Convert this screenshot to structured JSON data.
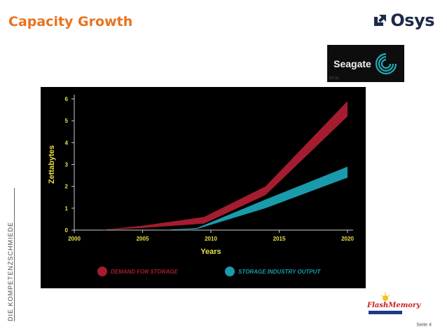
{
  "slide": {
    "title": "Capacity Growth",
    "brand": "Osys",
    "side_text": "DIE KOMPETENZSCHMIEDE",
    "page_label": "Seite 4",
    "seagate_logo_text": "Seagate",
    "seagate_small_text": "GT-XL",
    "fms_logo_text": "FlashMemory"
  },
  "colors": {
    "title": "#e8731e",
    "demand": "#a51c30",
    "output": "#1a9bab",
    "axis_text": "#e8e04a"
  },
  "chart_data": {
    "type": "area",
    "xlabel": "Years",
    "ylabel": "Zettabytes",
    "xlim": [
      2000,
      2020
    ],
    "ylim": [
      0,
      6
    ],
    "xticks": [
      "2000",
      "2005",
      "2010",
      "2015",
      "2020"
    ],
    "yticks": [
      "0",
      "1",
      "2",
      "3",
      "4",
      "5",
      "6"
    ],
    "grid": false,
    "legend": "bottom",
    "series": [
      {
        "name": "DEMAND FOR STORAGE",
        "color": "#a51c30",
        "x": [
          2002,
          2005,
          2009.5,
          2014,
          2020
        ],
        "lower": [
          0,
          0.1,
          0.3,
          1.6,
          5.2
        ],
        "upper": [
          0,
          0.2,
          0.6,
          2.0,
          5.9
        ]
      },
      {
        "name": "STORAGE INDUSTRY OUTPUT",
        "color": "#1a9bab",
        "x": [
          2006.5,
          2009,
          2014,
          2020
        ],
        "lower": [
          0,
          0.05,
          1.0,
          2.4
        ],
        "upper": [
          0,
          0.1,
          1.4,
          2.9
        ]
      }
    ]
  }
}
